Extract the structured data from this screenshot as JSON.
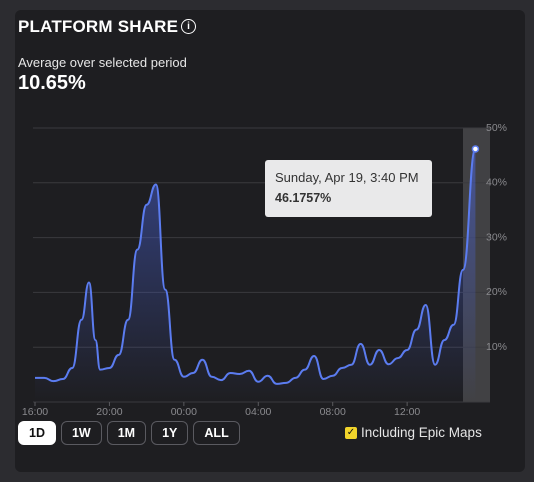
{
  "header": {
    "title": "PLATFORM SHARE",
    "subtitle": "Average over selected period",
    "average": "10.65%"
  },
  "chart_data": {
    "type": "line",
    "color": "#5b7cf0",
    "x": [
      16,
      16.5,
      17,
      17.5,
      18,
      18.5,
      18.9,
      19.25,
      19.5,
      20,
      20.5,
      21,
      21.5,
      22,
      22.5,
      23,
      23.5,
      24,
      24.5,
      25,
      25.5,
      26,
      26.5,
      27,
      27.5,
      28,
      28.5,
      29,
      29.5,
      30,
      30.5,
      31,
      31.5,
      32,
      32.5,
      33,
      33.5,
      34,
      34.5,
      35,
      35.5,
      36,
      36.5,
      37,
      37.5,
      38,
      38.5,
      39,
      39.67
    ],
    "values": [
      4.4,
      4.4,
      3.8,
      4.2,
      6.2,
      15,
      21.8,
      11.3,
      5.9,
      6.2,
      8.6,
      15,
      27.8,
      36,
      39.7,
      20.5,
      7.7,
      4.6,
      5.3,
      7.7,
      4.6,
      4,
      5.3,
      5.1,
      5.7,
      3.7,
      4.8,
      3.3,
      3.5,
      4.4,
      5.9,
      8.4,
      4.2,
      4.8,
      6.2,
      6.8,
      10.6,
      6.8,
      9.5,
      6.9,
      8,
      9.5,
      13.2,
      17.7,
      6.8,
      11.3,
      14.1,
      24.1,
      46.1757
    ],
    "xlim": [
      16,
      40.4
    ],
    "xticks": [
      {
        "value": 16,
        "label": "16:00"
      },
      {
        "value": 20,
        "label": "20:00"
      },
      {
        "value": 24,
        "label": "00:00"
      },
      {
        "value": 28,
        "label": "04:00"
      },
      {
        "value": 32,
        "label": "08:00"
      },
      {
        "value": 36,
        "label": "12:00"
      }
    ],
    "ylim": [
      0,
      50
    ],
    "yticks": [
      {
        "value": 10,
        "label": "10%"
      },
      {
        "value": 20,
        "label": "20%"
      },
      {
        "value": 30,
        "label": "30%"
      },
      {
        "value": 40,
        "label": "40%"
      },
      {
        "value": 50,
        "label": "50%"
      }
    ],
    "grid": true,
    "tooltip": {
      "title": "Sunday, Apr 19, 3:40 PM",
      "label": "46.1757%"
    }
  },
  "controls": {
    "ranges": [
      "1D",
      "1W",
      "1M",
      "1Y",
      "ALL"
    ],
    "selected": 0,
    "checkbox": "Including Epic Maps"
  }
}
